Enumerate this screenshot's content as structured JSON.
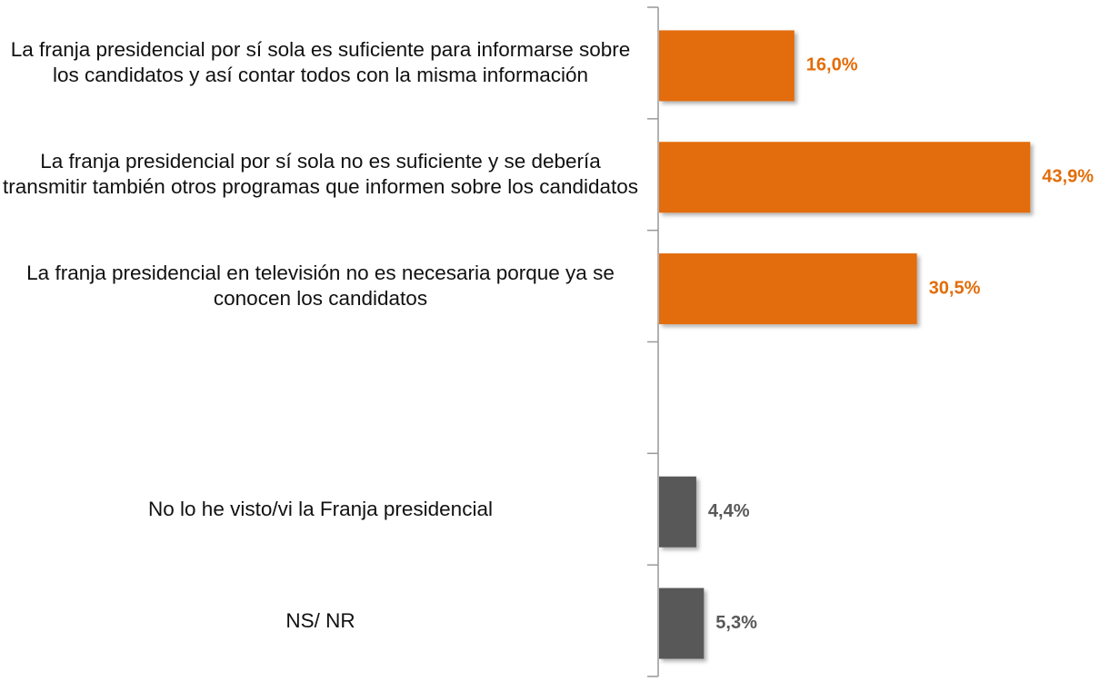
{
  "chart_data": {
    "type": "bar",
    "orientation": "horizontal",
    "categories": [
      "La franja presidencial por sí sola es suficiente para informarse sobre los candidatos y así contar todos con la misma información",
      "La franja presidencial por sí sola no es suficiente y se debería transmitir también otros programas que informen sobre los candidatos",
      "La franja presidencial en televisión no es necesaria porque ya se conocen los candidatos",
      null,
      "No lo he visto/vi la Franja presidencial",
      "NS/ NR"
    ],
    "values": [
      16.0,
      43.9,
      30.5,
      null,
      4.4,
      5.3
    ],
    "value_labels": [
      "16,0%",
      "43,9%",
      "30,5%",
      null,
      "4,4%",
      "5,3%"
    ],
    "colors": [
      "#e36c09",
      "#e36c09",
      "#e36c09",
      null,
      "#595959",
      "#595959"
    ]
  }
}
